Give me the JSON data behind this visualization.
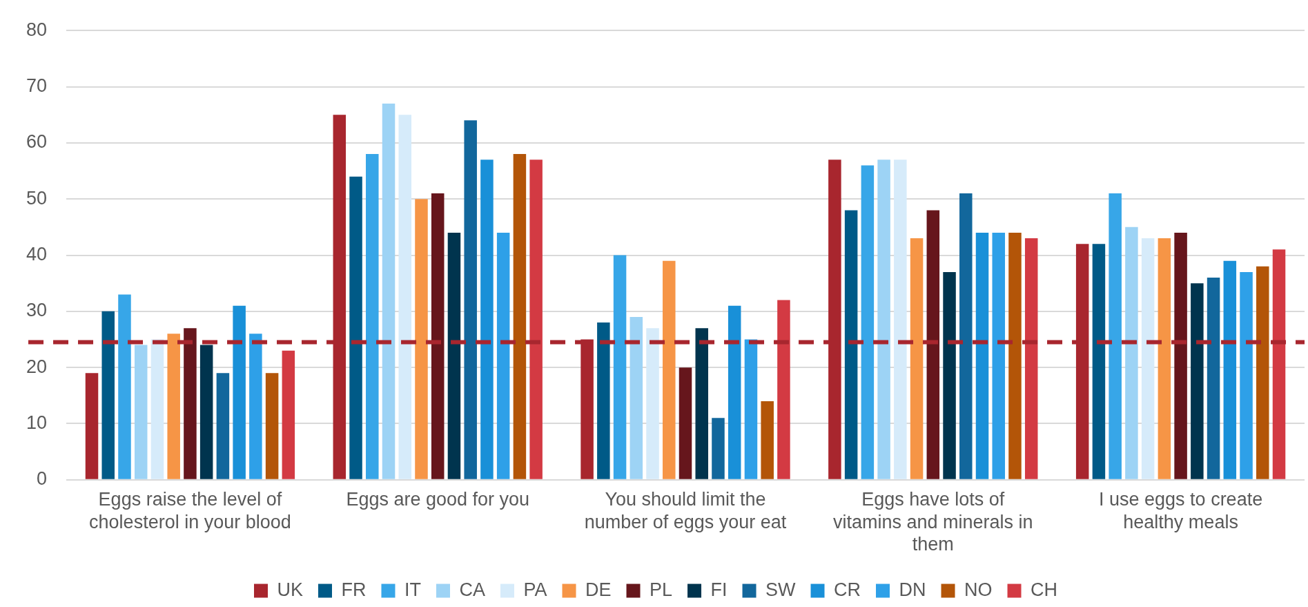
{
  "chart_data": {
    "type": "bar",
    "categories": [
      "Eggs raise the level of cholesterol in your blood",
      "Eggs are good for you",
      "You should limit the number of eggs your eat",
      "Eggs have lots of vitamins and minerals in them",
      "I use eggs to create healthy meals"
    ],
    "series": [
      {
        "name": "UK",
        "color": "#a8262e",
        "values": [
          19,
          65,
          25,
          57,
          42
        ]
      },
      {
        "name": "FR",
        "color": "#005a87",
        "values": [
          30,
          54,
          28,
          48,
          42
        ]
      },
      {
        "name": "IT",
        "color": "#37a6e8",
        "values": [
          33,
          58,
          40,
          56,
          51
        ]
      },
      {
        "name": "CA",
        "color": "#9dd3f5",
        "values": [
          24,
          67,
          29,
          57,
          45
        ]
      },
      {
        "name": "PA",
        "color": "#d6ebfa",
        "values": [
          25,
          65,
          27,
          57,
          43
        ]
      },
      {
        "name": "DE",
        "color": "#f69546",
        "values": [
          26,
          50,
          39,
          43,
          43
        ]
      },
      {
        "name": "PL",
        "color": "#66161c",
        "values": [
          27,
          51,
          20,
          48,
          44
        ]
      },
      {
        "name": "FI",
        "color": "#00344e",
        "values": [
          24,
          44,
          27,
          37,
          35
        ]
      },
      {
        "name": "SW",
        "color": "#12679c",
        "values": [
          19,
          64,
          11,
          51,
          36
        ]
      },
      {
        "name": "CR",
        "color": "#1990d8",
        "values": [
          31,
          57,
          31,
          44,
          39
        ]
      },
      {
        "name": "DN",
        "color": "#2ea0e8",
        "values": [
          26,
          44,
          25,
          44,
          37
        ]
      },
      {
        "name": "NO",
        "color": "#b35508",
        "values": [
          19,
          58,
          14,
          44,
          38
        ]
      },
      {
        "name": "CH",
        "color": "#d33a43",
        "values": [
          23,
          57,
          32,
          43,
          41
        ]
      }
    ],
    "ylim": [
      0,
      80
    ],
    "yticks": [
      0,
      10,
      20,
      30,
      40,
      50,
      60,
      70,
      80
    ],
    "grid": "y",
    "legend": "bottom",
    "ref_lines": [
      {
        "axis": "y",
        "value": 24.5,
        "color": "#a8262e",
        "line_style": "dashed"
      }
    ]
  }
}
